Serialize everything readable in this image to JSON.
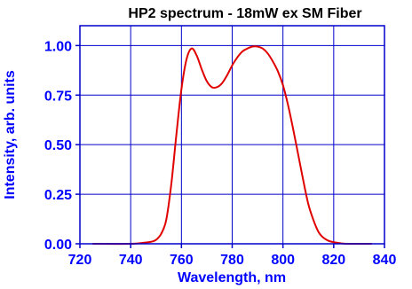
{
  "chart_data": {
    "type": "line",
    "title": "HP2 spectrum - 18mW ex SM Fiber",
    "xlabel": "Wavelength, nm",
    "ylabel": "Intensity, arb. units",
    "xlim": [
      720,
      840
    ],
    "ylim": [
      0,
      1.1
    ],
    "xticks": [
      720,
      740,
      760,
      780,
      800,
      820,
      840
    ],
    "xtick_labels": [
      "720",
      "740",
      "760",
      "780",
      "800",
      "820",
      "840"
    ],
    "yticks": [
      0,
      0.25,
      0.5,
      0.75,
      1.0
    ],
    "ytick_labels": [
      "0.00",
      "0.25",
      "0.50",
      "0.75",
      "1.00"
    ],
    "grid": true,
    "legend": "none",
    "colors": {
      "line": "#e00000",
      "axes": "#0000cc",
      "grid": "#0000cc",
      "text": "#0000ff"
    },
    "series": [
      {
        "x": [
          725,
          740,
          745,
          748,
          750,
          752,
          754,
          756,
          758,
          760,
          762,
          764,
          766,
          768,
          770,
          772,
          774,
          776,
          778,
          780,
          782,
          784,
          786,
          788,
          790,
          792,
          794,
          796,
          798,
          800,
          802,
          804,
          806,
          808,
          810,
          812,
          814,
          816,
          818,
          820,
          822,
          825,
          835
        ],
        "y": [
          0.0,
          0.0,
          0.005,
          0.01,
          0.02,
          0.05,
          0.12,
          0.3,
          0.55,
          0.78,
          0.93,
          0.985,
          0.95,
          0.88,
          0.82,
          0.79,
          0.79,
          0.81,
          0.85,
          0.9,
          0.94,
          0.97,
          0.985,
          0.995,
          0.995,
          0.985,
          0.96,
          0.92,
          0.87,
          0.8,
          0.7,
          0.58,
          0.45,
          0.32,
          0.2,
          0.12,
          0.06,
          0.03,
          0.015,
          0.008,
          0.004,
          0.0,
          0.0
        ]
      }
    ]
  }
}
